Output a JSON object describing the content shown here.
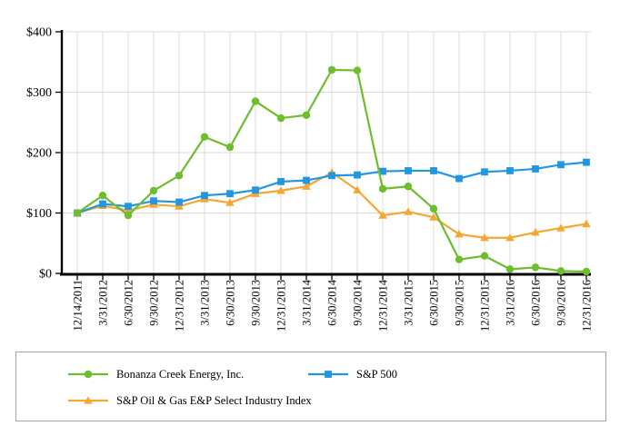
{
  "chart_data": {
    "type": "line",
    "title": "",
    "xlabel": "",
    "ylabel": "",
    "categories": [
      "12/14/2011",
      "3/31/2012",
      "6/30/2012",
      "9/30/2012",
      "12/31/2012",
      "3/31/2013",
      "6/30/2013",
      "9/30/2013",
      "12/31/2013",
      "3/31/2014",
      "6/30/2014",
      "9/30/2014",
      "12/31/2014",
      "3/31/2015",
      "6/30/2015",
      "9/30/2015",
      "12/31/2015",
      "3/31/2016",
      "6/30/2016",
      "9/30/2016",
      "12/31/2016"
    ],
    "series": [
      {
        "name": "Bonanza Creek Energy, Inc.",
        "marker": "circle",
        "color": "#6cbe2d",
        "values": [
          100,
          129,
          96,
          137,
          162,
          226,
          209,
          285,
          257,
          262,
          337,
          336,
          140,
          144,
          107,
          23,
          29,
          7,
          10,
          4,
          3
        ]
      },
      {
        "name": "S&P 500",
        "marker": "square",
        "color": "#2196e3",
        "values": [
          100,
          115,
          111,
          120,
          118,
          129,
          132,
          138,
          152,
          154,
          162,
          163,
          169,
          170,
          170,
          157,
          168,
          170,
          173,
          180,
          184
        ]
      },
      {
        "name": "S&P Oil & Gas E&P Select Industry Index",
        "marker": "triangle",
        "color": "#f7a631",
        "values": [
          100,
          112,
          104,
          114,
          111,
          123,
          117,
          132,
          137,
          144,
          167,
          138,
          96,
          102,
          93,
          65,
          59,
          59,
          68,
          75,
          82
        ]
      }
    ],
    "y_axis": {
      "tick_labels": [
        "$0",
        "$100",
        "$200",
        "$300",
        "$400"
      ],
      "tick_values": [
        0,
        100,
        200,
        300,
        400
      ],
      "range": [
        0,
        400
      ]
    },
    "grid": true,
    "legend_position": "bottom-box",
    "colors": {
      "gridline": "#dcdcdc",
      "axis": "#000000",
      "text": "#000000",
      "legend_border": "#a3a3a3",
      "background": "#ffffff"
    }
  }
}
